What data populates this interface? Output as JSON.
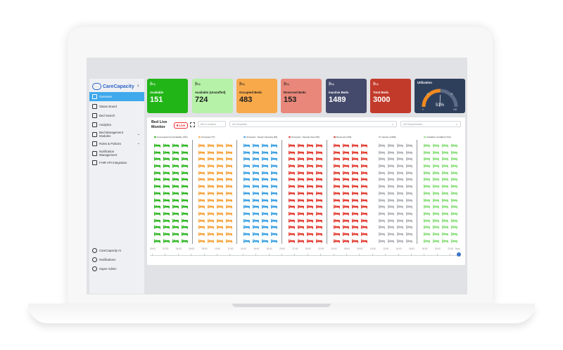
{
  "app": {
    "logo_text": "CareCapacity"
  },
  "sidebar": {
    "items": [
      {
        "label": "Overview",
        "icon": "home-icon",
        "active": true
      },
      {
        "label": "Status Board",
        "icon": "board-icon"
      },
      {
        "label": "Bed Search",
        "icon": "bed-icon"
      },
      {
        "label": "Analytics",
        "icon": "chart-icon"
      },
      {
        "label": "Bed Management Modules",
        "icon": "layers-icon",
        "chevron": true
      },
      {
        "label": "Roles & Policies",
        "icon": "shield-icon",
        "chevron": true
      },
      {
        "label": "Notification Management",
        "icon": "bell-icon"
      },
      {
        "label": "FHIR API Integration",
        "icon": "flame-icon"
      }
    ],
    "bottom": [
      {
        "label": "CareCapacity AI",
        "icon": "robot-icon"
      },
      {
        "label": "Notifications",
        "icon": "bell-icon"
      },
      {
        "label": "Super Admin",
        "icon": "user-icon"
      }
    ]
  },
  "stats": [
    {
      "label": "Available",
      "value": "151",
      "color": "#22b518"
    },
    {
      "label": "Available (Unstaffed)",
      "value": "724",
      "color": "#b6f2a8",
      "dark": true
    },
    {
      "label": "Occupied Beds",
      "value": "483",
      "color": "#f8a94a",
      "dark": true
    },
    {
      "label": "Reserved Beds",
      "value": "153",
      "color": "#e9877a",
      "dark": true
    },
    {
      "label": "Inactive Beds",
      "value": "1489",
      "color": "#434a6b"
    },
    {
      "label": "Total Beds",
      "value": "3000",
      "color": "#c23a2a"
    }
  ],
  "utilization": {
    "label": "Utilization",
    "percent": 51,
    "display": "51%",
    "min": "0",
    "max": "100",
    "mid_low": "25",
    "mid_high": "75",
    "color": "#2e3f5c"
  },
  "monitor": {
    "title": "Bed Live Monitor",
    "live_label": "Live",
    "filters": {
      "location_placeholder": "Bed Location",
      "hospital": "All Hospitals",
      "department": "All Departments"
    },
    "columns": [
      {
        "label": "Unoccupied And Available (151)",
        "color": "#2bb41f"
      },
      {
        "label": "Occupied (??)",
        "color": "#f5a33b"
      },
      {
        "label": "Occupied - Needs Cleaning (66)",
        "color": "#3a9fe0"
      },
      {
        "label": "Occupied - Special Care (59)",
        "color": "#e23b30"
      },
      {
        "label": "Reserved (153)",
        "color": "#e23b30"
      },
      {
        "label": "Inactive (1489)",
        "color": "#b5b7bb"
      },
      {
        "label": "Available Unstaffed (724)",
        "color": "#8fe082"
      }
    ],
    "timeline_ticks": [
      "00:00",
      "02:00",
      "04:00",
      "06:00",
      "08:00",
      "10:00",
      "12:00",
      "14:00",
      "16:00",
      "18:00",
      "20:00",
      "22:00",
      "00:00",
      "02:00",
      "04:00",
      "06:00",
      "08:00",
      "10:00",
      "12:00",
      "14:00",
      "16:00",
      "18:00",
      "20:00",
      "22:00"
    ],
    "timeline_end": "Now"
  }
}
